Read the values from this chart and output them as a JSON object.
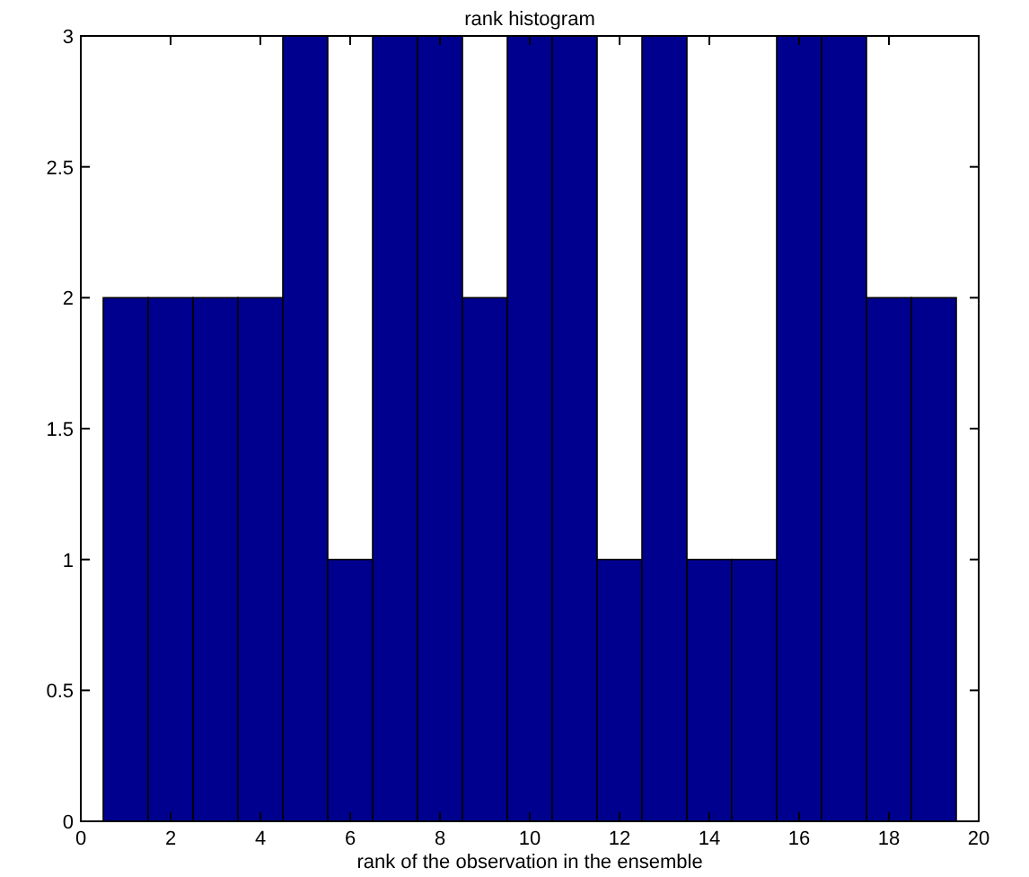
{
  "chart_data": {
    "type": "histogram",
    "title": "rank histogram",
    "xlabel": "rank of the observation in the ensemble",
    "bins": [
      0.5,
      1.5,
      2.5,
      3.5,
      4.5,
      5.5,
      6.5,
      7.5,
      8.5,
      9.5,
      10.5,
      11.5,
      12.5,
      13.5,
      14.5,
      15.5,
      16.5,
      17.5,
      18.5,
      19.5
    ],
    "values": [
      2,
      2,
      2,
      2,
      3,
      1,
      3,
      3,
      2,
      3,
      3,
      1,
      3,
      1,
      1,
      3,
      3,
      2,
      2
    ],
    "color": "#00008f",
    "xlim": [
      0,
      20
    ],
    "xticks": [
      0,
      2,
      4,
      6,
      8,
      10,
      12,
      14,
      16,
      18,
      20
    ],
    "ylim": [
      0,
      3
    ],
    "yticks": [
      0,
      0.5,
      1,
      1.5,
      2,
      2.5,
      3
    ]
  }
}
